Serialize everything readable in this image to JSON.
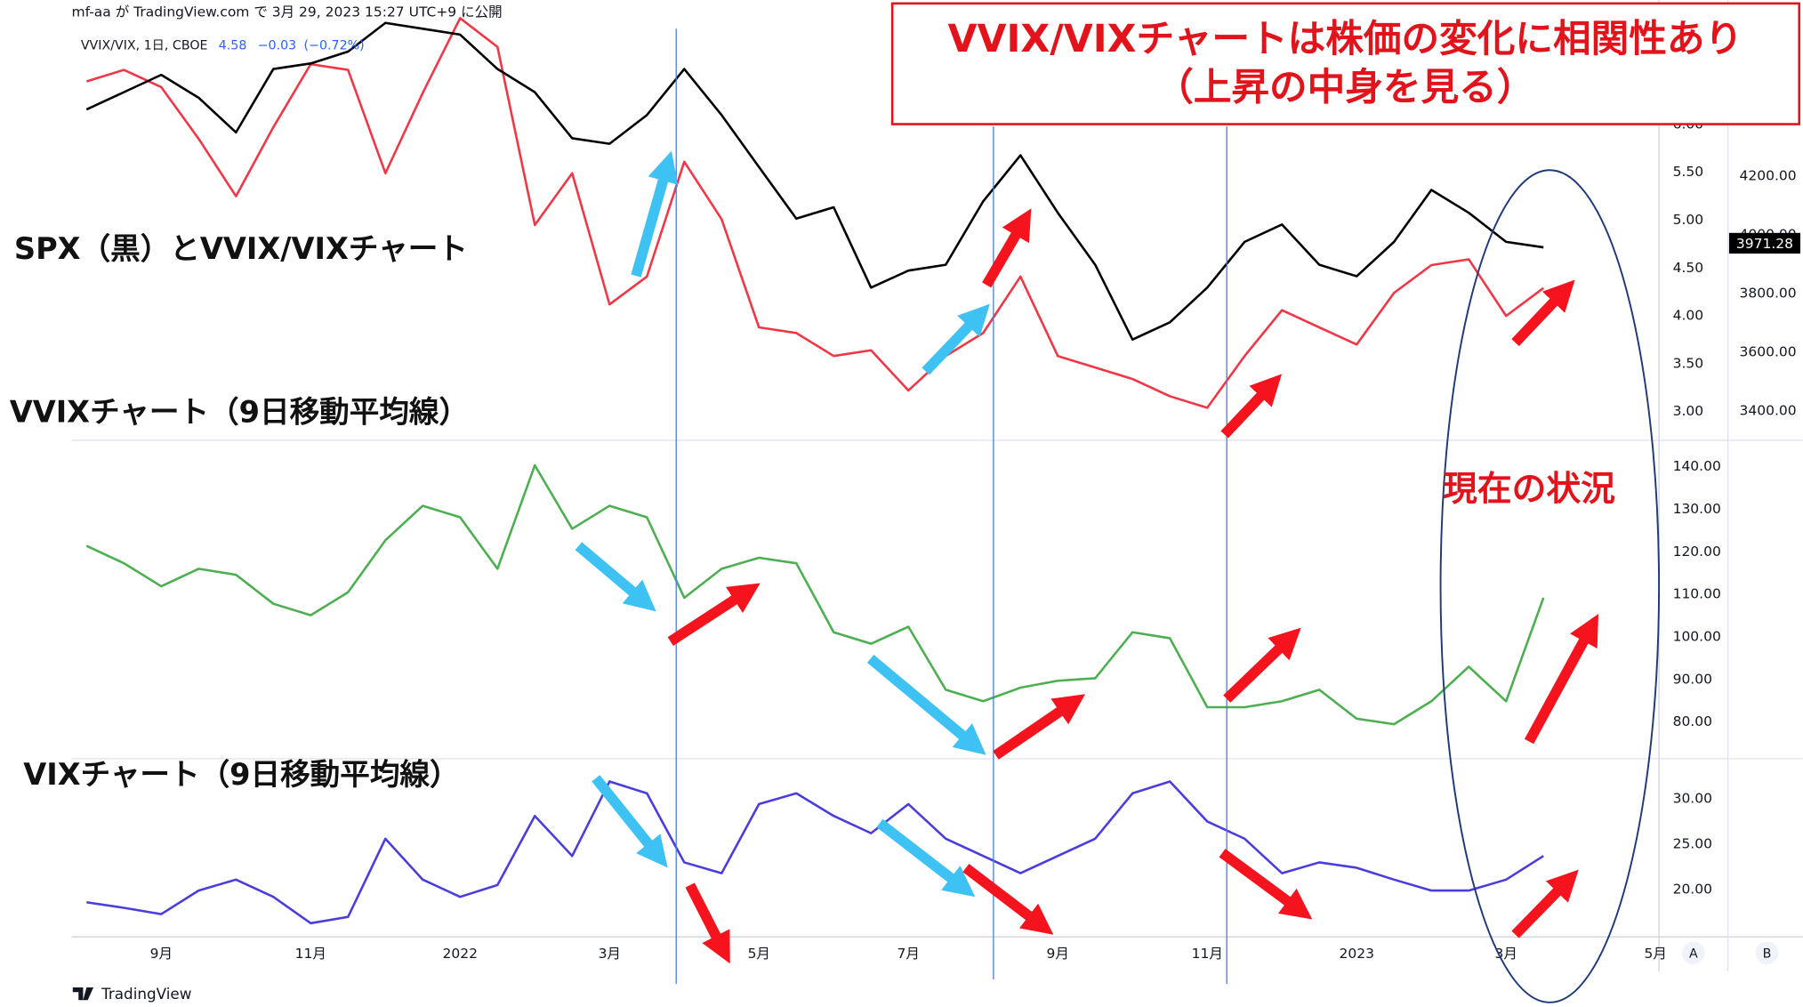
{
  "header": {
    "published": "mf-aa が TradingView.com で 3月 29, 2023 15:27 UTC+9 に公開",
    "legend": "VVIX/VIX, 1日, CBOE",
    "last": "4.58",
    "change": "−0.03",
    "change_pct": "(−0.72%)"
  },
  "footer": {
    "brand": "TradingView",
    "scale_buttons": [
      "A",
      "B"
    ]
  },
  "chart_data": {
    "type": "line",
    "title": "VVIX/VIXチャートは株価の変化に相関性あり",
    "subtitle": "（上昇の中身を見る）",
    "annotation": "現在の状況",
    "categories": [
      null,
      null,
      "9月",
      null,
      null,
      null,
      "11月",
      null,
      null,
      null,
      "2022",
      null,
      null,
      null,
      "3月",
      null,
      null,
      null,
      "5月",
      null,
      null,
      null,
      "7月",
      null,
      null,
      null,
      "9月",
      null,
      null,
      null,
      "11月",
      null,
      null,
      null,
      "2023",
      null,
      null,
      null,
      "3月",
      null,
      null,
      null,
      "5月"
    ],
    "panels": [
      {
        "label": "SPX（黒）とVVIX/VIXチャート",
        "ylim": [
          2.7,
          7.3
        ],
        "yticks": [
          {
            "value": 3,
            "label": "3.00"
          },
          {
            "value": 3.5,
            "label": "3.50"
          },
          {
            "value": 4,
            "label": "4.00"
          },
          {
            "value": 4.5,
            "label": "4.50"
          },
          {
            "value": 5,
            "label": "5.00"
          },
          {
            "value": 5.5,
            "label": "5.50"
          },
          {
            "value": 6,
            "label": "6.00"
          }
        ],
        "y2lim": [
          3300,
          4800
        ],
        "y2ticks": [
          {
            "value": 3400,
            "label": "3400.00"
          },
          {
            "value": 3600,
            "label": "3600.00"
          },
          {
            "value": 3800,
            "label": "3800.00"
          },
          {
            "value": 4000,
            "label": "4000.00"
          },
          {
            "value": 4200,
            "label": "4200.00"
          }
        ],
        "last_price": 3971.28,
        "series": [
          {
            "color": "#f23645",
            "values": [
              6.45,
              6.57,
              6.39,
              5.85,
              5.25,
              5.97,
              6.63,
              6.57,
              5.49,
              6.33,
              7.11,
              6.81,
              4.95,
              5.49,
              4.12,
              4.41,
              5.61,
              5.01,
              3.88,
              3.82,
              3.58,
              3.64,
              3.22,
              3.58,
              3.82,
              4.41,
              3.58,
              3.46,
              3.34,
              3.16,
              3.04,
              3.58,
              4.06,
              3.88,
              3.7,
              4.24,
              4.53,
              4.59,
              4.0,
              4.29,
              null,
              null,
              null
            ]
          },
          {
            "color": "#000000",
            "axis": "y2",
            "values": [
              4427,
              4486,
              4545,
              4467,
              4349,
              4565,
              4584,
              4624,
              4722,
              4702,
              4682,
              4565,
              4486,
              4329,
              4310,
              4408,
              4565,
              4408,
              4231,
              4055,
              4094,
              3820,
              3878,
              3898,
              4114,
              4271,
              4075,
              3898,
              3643,
              3702,
              3820,
              3976,
              4035,
              3898,
              3859,
              3976,
              4153,
              4075,
              3976,
              3957,
              null,
              null,
              null
            ]
          }
        ]
      },
      {
        "label": "VVIXチャート（9日移動平均線）",
        "ylim": [
          71.4,
          146.2
        ],
        "yticks": [
          {
            "value": 80,
            "label": "80.00"
          },
          {
            "value": 90,
            "label": "90.00"
          },
          {
            "value": 100,
            "label": "100.00"
          },
          {
            "value": 110,
            "label": "110.00"
          },
          {
            "value": 120,
            "label": "120.00"
          },
          {
            "value": 130,
            "label": "130.00"
          },
          {
            "value": 140,
            "label": "140.00"
          }
        ],
        "series": [
          {
            "color": "#4caf50",
            "values": [
              121.4,
              117.3,
              111.9,
              116.0,
              114.6,
              107.8,
              105.1,
              110.5,
              122.7,
              130.8,
              128.1,
              116.0,
              140.3,
              125.4,
              130.8,
              128.1,
              109.2,
              116.0,
              118.6,
              117.3,
              101.1,
              98.4,
              102.4,
              87.6,
              84.9,
              88.1,
              89.7,
              90.3,
              101.1,
              99.7,
              83.5,
              83.5,
              84.9,
              87.6,
              80.8,
              79.5,
              84.9,
              93.0,
              84.9,
              109.2,
              null,
              null,
              null
            ]
          }
        ]
      },
      {
        "label": "VIXチャート（9日移動平均線）",
        "ylim": [
          14.8,
          34.4
        ],
        "yticks": [
          {
            "value": 20,
            "label": "20.00"
          },
          {
            "value": 25,
            "label": "25.00"
          },
          {
            "value": 30,
            "label": "30.00"
          }
        ],
        "series": [
          {
            "color": "#4a3de0",
            "values": [
              18.6,
              18.0,
              17.3,
              19.9,
              21.1,
              19.2,
              16.3,
              17.0,
              25.6,
              21.1,
              19.2,
              20.5,
              28.1,
              23.7,
              31.9,
              30.6,
              23.0,
              21.8,
              29.4,
              30.6,
              28.1,
              26.2,
              29.4,
              25.6,
              23.7,
              21.8,
              23.7,
              25.6,
              30.6,
              31.9,
              27.5,
              25.6,
              21.8,
              23.0,
              22.4,
              21.1,
              19.9,
              19.9,
              21.1,
              23.7,
              null,
              null,
              null
            ]
          }
        ]
      }
    ]
  }
}
